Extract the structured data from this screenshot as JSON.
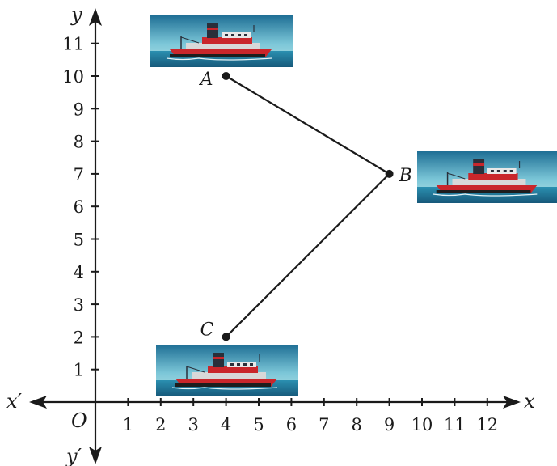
{
  "chart_data": {
    "type": "scatter",
    "axes": {
      "x_name": "x",
      "x_neg_name": "x′",
      "y_name": "y",
      "y_neg_name": "y′",
      "origin_label": "O",
      "x_ticks": [
        1,
        2,
        3,
        4,
        5,
        6,
        7,
        8,
        9,
        10,
        11,
        12
      ],
      "y_ticks": [
        1,
        2,
        3,
        4,
        5,
        6,
        7,
        8,
        9,
        10,
        11
      ],
      "xlim": [
        0,
        12
      ],
      "ylim": [
        0,
        11
      ],
      "grid": false
    },
    "points": [
      {
        "label": "A",
        "x": 4,
        "y": 10
      },
      {
        "label": "B",
        "x": 9,
        "y": 7
      },
      {
        "label": "C",
        "x": 4,
        "y": 2
      }
    ],
    "path": [
      "A",
      "B",
      "C"
    ],
    "pictures": [
      {
        "name": "ship-picture-a",
        "near": "A"
      },
      {
        "name": "ship-picture-b",
        "near": "B"
      },
      {
        "name": "ship-picture-c",
        "near": "C"
      }
    ]
  },
  "colors": {
    "axis": "#1a1a1a",
    "sky": "#7cc7d8",
    "sea": "#2b8fb0",
    "hull": "#c9262b",
    "funnel": "#2a2f3a"
  }
}
